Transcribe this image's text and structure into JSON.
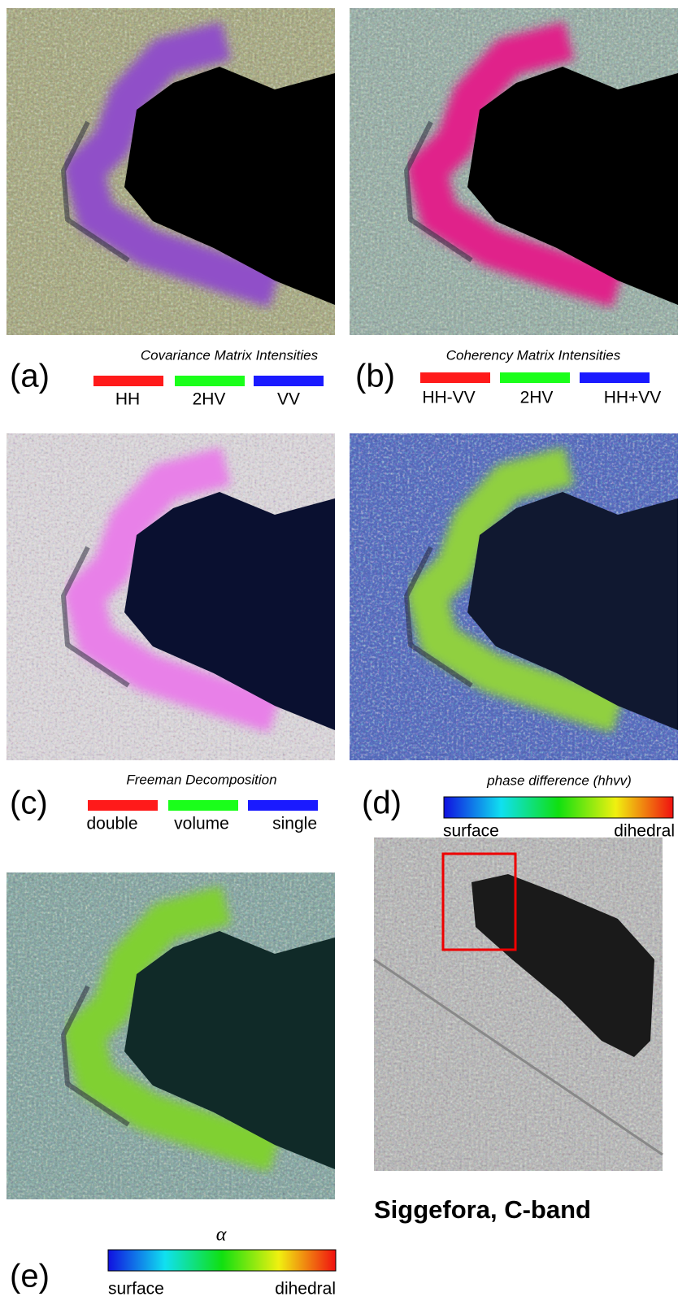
{
  "panels": [
    {
      "label": "(a)",
      "title": "Covariance Matrix Intensities",
      "legend": [
        {
          "name": "HH",
          "color": "#ff1a1a"
        },
        {
          "name": "2HV",
          "color": "#1aff1a"
        },
        {
          "name": "VV",
          "color": "#1a1aff"
        }
      ]
    },
    {
      "label": "(b)",
      "title": "Coherency Matrix Intensities",
      "legend": [
        {
          "name": "HH-VV",
          "color": "#ff1a1a"
        },
        {
          "name": "2HV",
          "color": "#1aff1a"
        },
        {
          "name": "HH+VV",
          "color": "#1a1aff"
        }
      ]
    },
    {
      "label": "(c)",
      "title": "Freeman Decomposition",
      "legend": [
        {
          "name": "double",
          "color": "#ff1a1a"
        },
        {
          "name": "volume",
          "color": "#1aff1a"
        },
        {
          "name": "single",
          "color": "#1a1aff"
        }
      ]
    },
    {
      "label": "(d)",
      "title": "phase difference (hhvv)",
      "colorbar": [
        "surface",
        "dihedral"
      ]
    },
    {
      "label": "(e)",
      "title": "α",
      "colorbar": [
        "surface",
        "dihedral"
      ]
    }
  ],
  "caption": "Siggefora, C-band"
}
